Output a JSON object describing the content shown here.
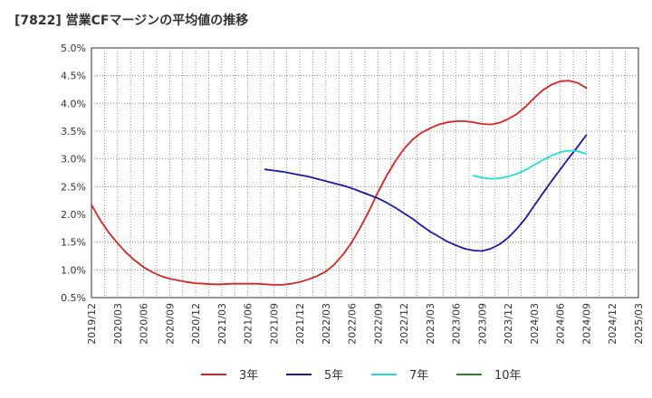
{
  "title": "[7822]  営業CFマージンの平均値の推移",
  "chart_data": {
    "type": "line",
    "title": "[7822]  営業CFマージンの平均値の推移",
    "xlabel": "",
    "ylabel": "",
    "ylim": [
      0.5,
      5.0
    ],
    "y_ticks": [
      "0.5%",
      "1.0%",
      "1.5%",
      "2.0%",
      "2.5%",
      "3.0%",
      "3.5%",
      "4.0%",
      "4.5%",
      "5.0%"
    ],
    "x_ticks": [
      "2019/12",
      "2020/03",
      "2020/06",
      "2020/09",
      "2020/12",
      "2021/03",
      "2021/06",
      "2021/09",
      "2021/12",
      "2022/03",
      "2022/06",
      "2022/09",
      "2022/12",
      "2023/03",
      "2023/06",
      "2023/09",
      "2023/12",
      "2024/03",
      "2024/06",
      "2024/09",
      "2024/12",
      "2025/03"
    ],
    "grid": true,
    "legend_position": "bottom",
    "series": [
      {
        "name": "3年",
        "color": "#dd2222",
        "x": [
          "2019/12",
          "2020/01",
          "2020/02",
          "2020/03",
          "2020/04",
          "2020/05",
          "2020/06",
          "2020/07",
          "2020/08",
          "2020/09",
          "2020/10",
          "2020/11",
          "2020/12",
          "2021/01",
          "2021/02",
          "2021/03",
          "2021/04",
          "2021/05",
          "2021/06",
          "2021/07",
          "2021/08",
          "2021/09",
          "2021/10",
          "2021/11",
          "2021/12",
          "2022/01",
          "2022/02",
          "2022/03",
          "2022/04",
          "2022/05",
          "2022/06",
          "2022/07",
          "2022/08",
          "2022/09",
          "2022/10",
          "2022/11",
          "2022/12",
          "2023/01",
          "2023/02",
          "2023/03",
          "2023/04",
          "2023/05",
          "2023/06",
          "2023/07",
          "2023/08",
          "2023/09",
          "2023/10",
          "2023/11",
          "2023/12",
          "2024/01",
          "2024/02",
          "2024/03",
          "2024/04",
          "2024/05",
          "2024/06",
          "2024/07",
          "2024/08",
          "2024/09"
        ],
        "values": [
          2.17,
          1.9,
          1.67,
          1.48,
          1.31,
          1.17,
          1.05,
          0.96,
          0.89,
          0.84,
          0.81,
          0.78,
          0.76,
          0.75,
          0.74,
          0.74,
          0.75,
          0.75,
          0.75,
          0.75,
          0.74,
          0.73,
          0.73,
          0.75,
          0.78,
          0.83,
          0.89,
          0.97,
          1.1,
          1.28,
          1.5,
          1.77,
          2.07,
          2.4,
          2.7,
          2.96,
          3.18,
          3.35,
          3.47,
          3.55,
          3.62,
          3.66,
          3.68,
          3.68,
          3.66,
          3.63,
          3.62,
          3.65,
          3.72,
          3.81,
          3.94,
          4.1,
          4.24,
          4.34,
          4.4,
          4.41,
          4.37,
          4.28
        ]
      },
      {
        "name": "5年",
        "color": "#1a1aaa",
        "x": [
          "2021/08",
          "2021/09",
          "2021/10",
          "2021/11",
          "2021/12",
          "2022/01",
          "2022/02",
          "2022/03",
          "2022/04",
          "2022/05",
          "2022/06",
          "2022/07",
          "2022/08",
          "2022/09",
          "2022/10",
          "2022/11",
          "2022/12",
          "2023/01",
          "2023/02",
          "2023/03",
          "2023/04",
          "2023/05",
          "2023/06",
          "2023/07",
          "2023/08",
          "2023/09",
          "2023/10",
          "2023/11",
          "2023/12",
          "2024/01",
          "2024/02",
          "2024/03",
          "2024/04",
          "2024/05",
          "2024/06",
          "2024/07",
          "2024/08",
          "2024/09"
        ],
        "values": [
          2.81,
          2.79,
          2.77,
          2.74,
          2.71,
          2.68,
          2.64,
          2.6,
          2.56,
          2.52,
          2.47,
          2.41,
          2.35,
          2.29,
          2.21,
          2.12,
          2.02,
          1.92,
          1.8,
          1.69,
          1.6,
          1.51,
          1.44,
          1.38,
          1.35,
          1.34,
          1.38,
          1.46,
          1.58,
          1.74,
          1.93,
          2.16,
          2.38,
          2.6,
          2.81,
          3.02,
          3.22,
          3.43
        ]
      },
      {
        "name": "7年",
        "color": "#22dddd",
        "x": [
          "2023/08",
          "2023/09",
          "2023/10",
          "2023/11",
          "2023/12",
          "2024/01",
          "2024/02",
          "2024/03",
          "2024/04",
          "2024/05",
          "2024/06",
          "2024/07",
          "2024/08",
          "2024/09"
        ],
        "values": [
          2.7,
          2.66,
          2.64,
          2.65,
          2.68,
          2.73,
          2.8,
          2.89,
          2.98,
          3.06,
          3.12,
          3.15,
          3.14,
          3.09
        ]
      },
      {
        "name": "10年",
        "color": "#228822",
        "x": [],
        "values": []
      }
    ]
  }
}
